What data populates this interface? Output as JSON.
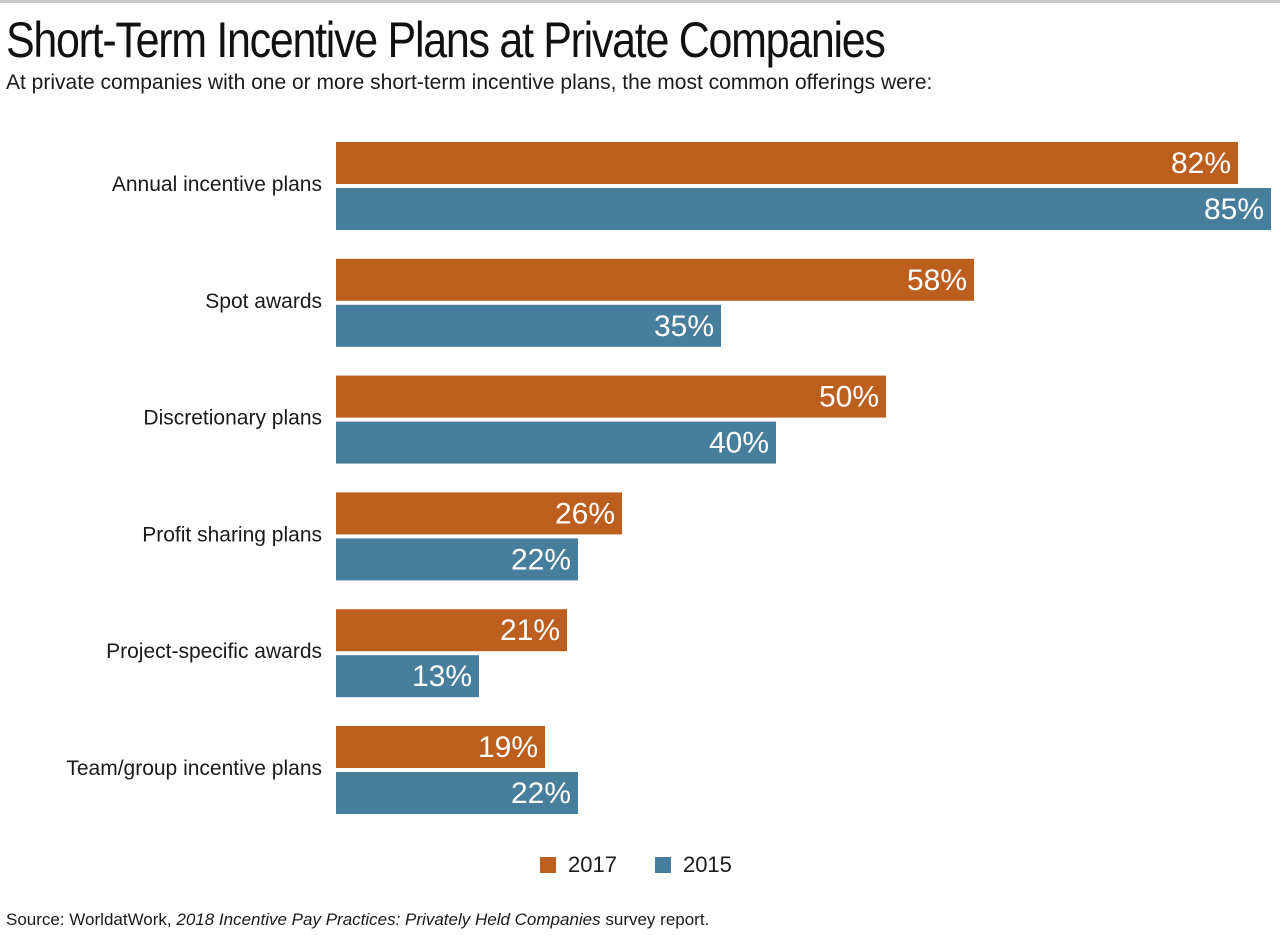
{
  "title": "Short-Term Incentive Plans at Private Companies",
  "subtitle": "At private companies with one or more short-term incentive plans, the most common offerings were:",
  "source": {
    "prefix": "Source: WorldatWork, ",
    "italic": "2018 Incentive Pay Practices: Privately Held Companies",
    "suffix": " survey report."
  },
  "colors": {
    "series_2017": "#bc5e1e",
    "series_2015": "#477e9c"
  },
  "chart_data": {
    "type": "bar",
    "orientation": "horizontal",
    "categories": [
      "Annual incentive plans",
      "Spot awards",
      "Discretionary plans",
      "Profit sharing plans",
      "Project-specific awards",
      "Team/group incentive plans"
    ],
    "series": [
      {
        "name": "2017",
        "values": [
          82,
          58,
          50,
          26,
          21,
          19
        ]
      },
      {
        "name": "2015",
        "values": [
          85,
          35,
          40,
          22,
          13,
          22
        ]
      }
    ],
    "value_suffix": "%",
    "xlim": [
      0,
      85
    ],
    "grid": false,
    "legend_position": "bottom"
  }
}
